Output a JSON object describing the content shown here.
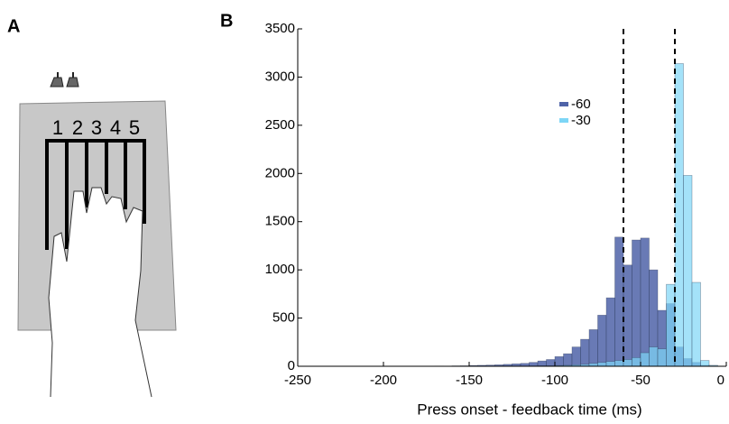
{
  "panels": [
    "A",
    "B"
  ],
  "keys": [
    "1",
    "2",
    "3",
    "4",
    "5"
  ],
  "chart_data": {
    "type": "histogram",
    "x_label": "Press onset - feedback time (ms)",
    "bins": [
      -250,
      -245,
      -240,
      -235,
      -230,
      -225,
      -220,
      -215,
      -210,
      -205,
      -200,
      -195,
      -190,
      -185,
      -180,
      -175,
      -170,
      -165,
      -160,
      -155,
      -150,
      -145,
      -140,
      -135,
      -130,
      -125,
      -120,
      -115,
      -110,
      -105,
      -100,
      -95,
      -90,
      -85,
      -80,
      -75,
      -70,
      -65,
      -60,
      -55,
      -50,
      -45,
      -40,
      -35,
      -30,
      -25,
      -20,
      -15,
      -10,
      -5,
      0
    ],
    "series": [
      {
        "name": "-60",
        "color": "#4f63a8",
        "values": [
          0,
          0,
          0,
          0,
          0,
          0,
          0,
          0,
          0,
          0,
          0,
          0,
          0,
          0,
          0,
          0,
          2,
          0,
          4,
          5,
          8,
          10,
          12,
          15,
          20,
          25,
          30,
          40,
          55,
          70,
          100,
          130,
          200,
          280,
          380,
          530,
          710,
          1340,
          1050,
          1310,
          1330,
          1000,
          580,
          650,
          200,
          80,
          40,
          10,
          0,
          0
        ]
      },
      {
        "name": "-30",
        "color": "#7dd6f6",
        "values": [
          0,
          0,
          0,
          0,
          0,
          0,
          0,
          0,
          0,
          0,
          0,
          0,
          0,
          0,
          0,
          0,
          0,
          0,
          0,
          0,
          0,
          0,
          0,
          0,
          0,
          0,
          2,
          3,
          5,
          5,
          8,
          10,
          15,
          20,
          30,
          40,
          50,
          60,
          70,
          90,
          140,
          200,
          180,
          850,
          3140,
          1980,
          870,
          60,
          10,
          0
        ]
      }
    ],
    "vlines": [
      -60,
      -30
    ],
    "xlim": [
      -250,
      0
    ],
    "xticks": [
      -250,
      -200,
      -150,
      -100,
      -50,
      0
    ],
    "ylim": [
      0,
      3500
    ],
    "yticks": [
      0,
      500,
      1000,
      1500,
      2000,
      2500,
      3000,
      3500
    ]
  }
}
